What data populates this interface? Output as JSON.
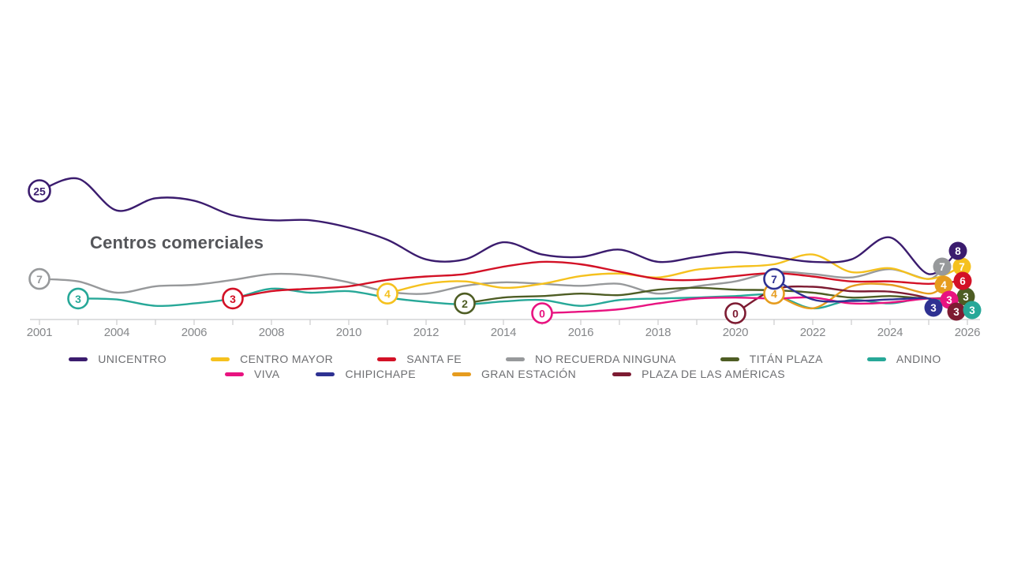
{
  "title": "Centros comerciales",
  "chart_data": {
    "type": "line",
    "title": "Centros comerciales",
    "x_years": [
      2001,
      2003,
      2004,
      2005,
      2006,
      2007,
      2008,
      2009,
      2010,
      2011,
      2012,
      2013,
      2014,
      2015,
      2016,
      2017,
      2018,
      2019,
      2020,
      2021,
      2022,
      2023,
      2024,
      2025
    ],
    "axis_tick_years": [
      2001,
      2003,
      2004,
      2005,
      2006,
      2007,
      2008,
      2009,
      2010,
      2011,
      2012,
      2013,
      2014,
      2015,
      2016,
      2017,
      2018,
      2019,
      2020,
      2021,
      2022,
      2023,
      2024,
      2025,
      2026
    ],
    "axis_labeled_years": [
      2001,
      2004,
      2006,
      2008,
      2010,
      2012,
      2014,
      2016,
      2018,
      2020,
      2022,
      2024,
      2026
    ],
    "ylim": [
      0,
      28
    ],
    "grid": false,
    "legend_position": "bottom",
    "series": [
      {
        "name": "UNICENTRO",
        "color": "#3b1c6e",
        "start_year": 2001,
        "start_label": "25",
        "end_label": "8",
        "values": [
          25,
          27.5,
          21,
          23.5,
          23,
          20,
          19,
          19,
          17.5,
          15,
          11,
          11,
          14.5,
          12,
          11.5,
          13,
          10.5,
          11.5,
          12.5,
          11.5,
          10.5,
          11,
          15.5,
          8
        ]
      },
      {
        "name": "CENTRO MAYOR",
        "color": "#f5c11e",
        "start_year": 2011,
        "start_label": "4",
        "end_label": "7",
        "values": [
          null,
          null,
          null,
          null,
          null,
          null,
          null,
          null,
          null,
          4,
          6,
          6.5,
          5.2,
          6,
          7.6,
          8.1,
          7.3,
          8.9,
          9.5,
          10,
          12,
          8.4,
          9.2,
          7
        ]
      },
      {
        "name": "SANTA FE",
        "color": "#d31126",
        "start_year": 2007,
        "start_label": "3",
        "end_label": "6",
        "values": [
          null,
          null,
          null,
          null,
          null,
          3,
          4.5,
          5,
          5.5,
          6.8,
          7.5,
          8,
          9.5,
          10.5,
          10,
          8.5,
          7,
          6.8,
          7.6,
          8.2,
          7.5,
          6.5,
          6.5,
          6
        ]
      },
      {
        "name": "NO RECUERDA NINGUNA",
        "color": "#97999b",
        "start_year": 2001,
        "start_label": "7",
        "end_label": "7",
        "values": [
          7,
          6.5,
          4.2,
          5.5,
          5.8,
          6.8,
          8,
          7.7,
          6.3,
          4.4,
          4,
          5.6,
          6.3,
          6,
          5.6,
          6,
          4,
          5.5,
          6.5,
          8.4,
          8,
          7.3,
          9,
          7
        ]
      },
      {
        "name": "TITÁN PLAZA",
        "color": "#4e5d24",
        "start_year": 2013,
        "start_label": "2",
        "end_label": "3",
        "values": [
          null,
          null,
          null,
          null,
          null,
          null,
          null,
          null,
          null,
          null,
          null,
          2,
          3.2,
          3.5,
          4,
          3.7,
          4.8,
          5.2,
          4.8,
          4.7,
          4.2,
          3.2,
          3.5,
          3
        ]
      },
      {
        "name": "ANDINO",
        "color": "#27a898",
        "start_year": 2003,
        "start_label": "3",
        "end_label": "3",
        "values": [
          null,
          3,
          2.8,
          1.5,
          2,
          3,
          5,
          4.2,
          4.5,
          3.2,
          2.3,
          1.8,
          2.4,
          2.7,
          1.5,
          2.7,
          3,
          3.2,
          3.5,
          3.7,
          1,
          2.7,
          2,
          3
        ]
      },
      {
        "name": "VIVA",
        "color": "#e81380",
        "start_year": 2015,
        "start_label": "0",
        "end_label": "3",
        "values": [
          null,
          null,
          null,
          null,
          null,
          null,
          null,
          null,
          null,
          null,
          null,
          null,
          null,
          0,
          0.3,
          0.8,
          2,
          3,
          3.2,
          3,
          3.2,
          2,
          2.2,
          3
        ]
      },
      {
        "name": "CHIPICHAPE",
        "color": "#2e3192",
        "start_year": 2021,
        "start_label": "7",
        "end_label": "3",
        "values": [
          null,
          null,
          null,
          null,
          null,
          null,
          null,
          null,
          null,
          null,
          null,
          null,
          null,
          null,
          null,
          null,
          null,
          null,
          null,
          7,
          2.8,
          2.5,
          2.8,
          3
        ]
      },
      {
        "name": "GRAN ESTACIÓN",
        "color": "#e69c1e",
        "start_year": 2021,
        "start_label": "4",
        "end_label": "4",
        "values": [
          null,
          null,
          null,
          null,
          null,
          null,
          null,
          null,
          null,
          null,
          null,
          null,
          null,
          null,
          null,
          null,
          null,
          null,
          null,
          4,
          1,
          5.5,
          5.8,
          4
        ]
      },
      {
        "name": "PLAZA DE LAS AMÉRICAS",
        "color": "#7d1b32",
        "start_year": 2020,
        "start_label": "0",
        "end_label": "3",
        "values": [
          null,
          null,
          null,
          null,
          null,
          null,
          null,
          null,
          null,
          null,
          null,
          null,
          null,
          null,
          null,
          null,
          null,
          null,
          0,
          4.8,
          5.4,
          4.5,
          4.4,
          3
        ]
      }
    ],
    "legend_rows": [
      [
        "UNICENTRO",
        "CENTRO MAYOR",
        "SANTA FE",
        "NO RECUERDA NINGUNA",
        "TITÁN PLAZA",
        "ANDINO"
      ],
      [
        "VIVA",
        "CHIPICHAPE",
        "GRAN ESTACIÓN",
        "PLAZA DE LAS AMÉRICAS"
      ]
    ]
  },
  "axis_style": {
    "line_color": "#cbcccd",
    "label_color": "#85878a"
  }
}
